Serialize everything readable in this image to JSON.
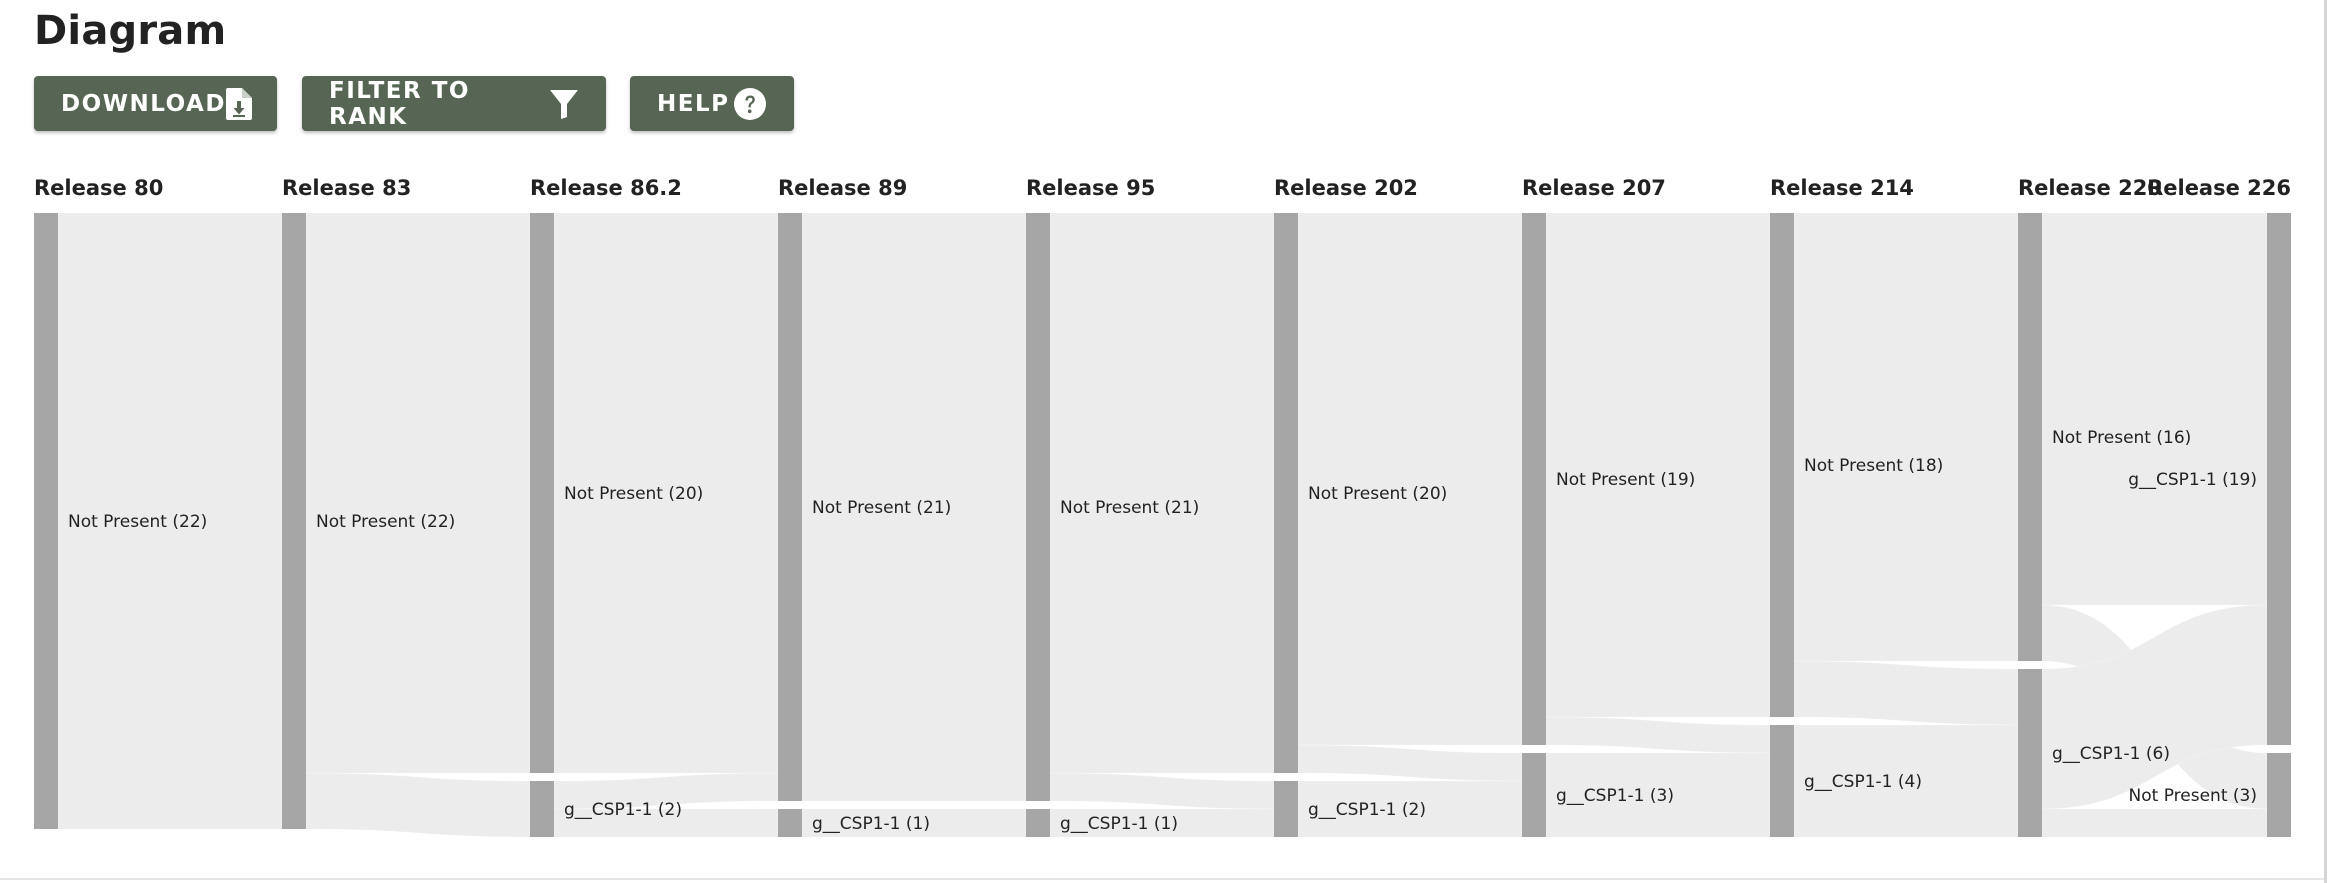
{
  "page": {
    "title": "Diagram"
  },
  "toolbar": {
    "download_label": "DOWNLOAD",
    "filter_label": "FILTER TO RANK",
    "help_label": "HELP",
    "download_icon": "file-download-icon",
    "filter_icon": "funnel-icon",
    "help_icon": "question-circle-icon"
  },
  "colors": {
    "button": "#576654",
    "node": "#a6a6a6",
    "link": "#ececec"
  },
  "releases": [
    "Release 80",
    "Release 83",
    "Release 86.2",
    "Release 89",
    "Release 95",
    "Release 202",
    "Release 207",
    "Release 214",
    "Release 220",
    "Release 226"
  ],
  "nodes": [
    {
      "id": "r0_np",
      "release": 0,
      "label": "Not Present (22)",
      "value": 22
    },
    {
      "id": "r1_np",
      "release": 1,
      "label": "Not Present (22)",
      "value": 22
    },
    {
      "id": "r2_np",
      "release": 2,
      "label": "Not Present (20)",
      "value": 20
    },
    {
      "id": "r2_g",
      "release": 2,
      "label": "g__CSP1-1 (2)",
      "value": 2
    },
    {
      "id": "r3_np",
      "release": 3,
      "label": "Not Present (21)",
      "value": 21
    },
    {
      "id": "r3_g",
      "release": 3,
      "label": "g__CSP1-1 (1)",
      "value": 1
    },
    {
      "id": "r4_np",
      "release": 4,
      "label": "Not Present (21)",
      "value": 21
    },
    {
      "id": "r4_g",
      "release": 4,
      "label": "g__CSP1-1 (1)",
      "value": 1
    },
    {
      "id": "r5_np",
      "release": 5,
      "label": "Not Present (20)",
      "value": 20
    },
    {
      "id": "r5_g",
      "release": 5,
      "label": "g__CSP1-1 (2)",
      "value": 2
    },
    {
      "id": "r6_np",
      "release": 6,
      "label": "Not Present (19)",
      "value": 19
    },
    {
      "id": "r6_g",
      "release": 6,
      "label": "g__CSP1-1 (3)",
      "value": 3
    },
    {
      "id": "r7_np",
      "release": 7,
      "label": "Not Present (18)",
      "value": 18
    },
    {
      "id": "r7_g",
      "release": 7,
      "label": "g__CSP1-1 (4)",
      "value": 4
    },
    {
      "id": "r8_np",
      "release": 8,
      "label": "Not Present (16)",
      "value": 16
    },
    {
      "id": "r8_g",
      "release": 8,
      "label": "g__CSP1-1 (6)",
      "value": 6
    },
    {
      "id": "r9_g",
      "release": 9,
      "label": "g__CSP1-1 (19)",
      "value": 19
    },
    {
      "id": "r9_np",
      "release": 9,
      "label": "Not Present (3)",
      "value": 3
    }
  ],
  "links": [
    {
      "source": "r0_np",
      "target": "r1_np",
      "value": 22
    },
    {
      "source": "r1_np",
      "target": "r2_np",
      "value": 20
    },
    {
      "source": "r1_np",
      "target": "r2_g",
      "value": 2
    },
    {
      "source": "r2_np",
      "target": "r3_np",
      "value": 20
    },
    {
      "source": "r2_g",
      "target": "r3_np",
      "value": 1
    },
    {
      "source": "r2_g",
      "target": "r3_g",
      "value": 1
    },
    {
      "source": "r3_np",
      "target": "r4_np",
      "value": 21
    },
    {
      "source": "r3_g",
      "target": "r4_g",
      "value": 1
    },
    {
      "source": "r4_np",
      "target": "r5_np",
      "value": 20
    },
    {
      "source": "r4_np",
      "target": "r5_g",
      "value": 1
    },
    {
      "source": "r4_g",
      "target": "r5_g",
      "value": 1
    },
    {
      "source": "r5_np",
      "target": "r6_np",
      "value": 19
    },
    {
      "source": "r5_np",
      "target": "r6_g",
      "value": 1
    },
    {
      "source": "r5_g",
      "target": "r6_g",
      "value": 2
    },
    {
      "source": "r6_np",
      "target": "r7_np",
      "value": 18
    },
    {
      "source": "r6_np",
      "target": "r7_g",
      "value": 1
    },
    {
      "source": "r6_g",
      "target": "r7_g",
      "value": 3
    },
    {
      "source": "r7_np",
      "target": "r8_np",
      "value": 16
    },
    {
      "source": "r7_np",
      "target": "r8_g",
      "value": 2
    },
    {
      "source": "r7_g",
      "target": "r8_g",
      "value": 4
    },
    {
      "source": "r8_np",
      "target": "r9_g",
      "value": 14
    },
    {
      "source": "r8_np",
      "target": "r9_np",
      "value": 2
    },
    {
      "source": "r8_g",
      "target": "r9_g",
      "value": 5
    },
    {
      "source": "r8_g",
      "target": "r9_np",
      "value": 1
    }
  ]
}
